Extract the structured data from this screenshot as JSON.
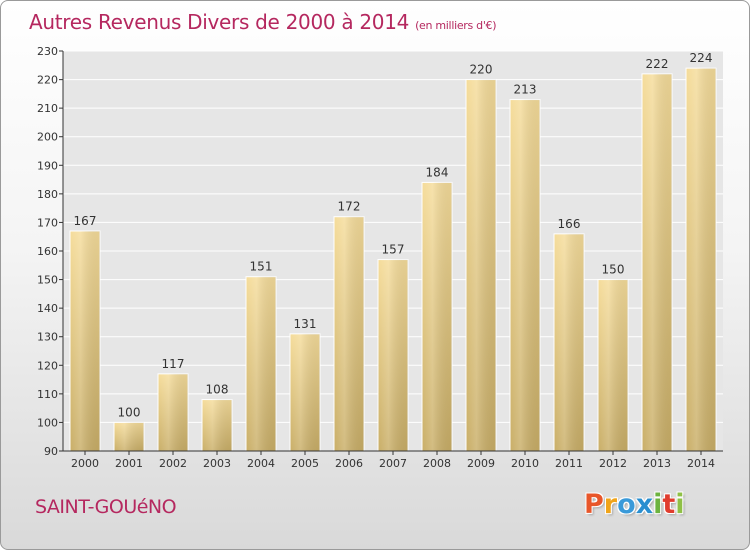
{
  "header": {
    "title": "Autres Revenus Divers de 2000 à 2014",
    "subtitle": "(en milliers d'€)"
  },
  "footer": {
    "commune": "SAINT-GOUéNO",
    "logo_letters": [
      "P",
      "r",
      "o",
      "x",
      "i",
      "t",
      "i"
    ],
    "logo_colors": [
      "#e8562a",
      "#f0a419",
      "#3a9ad9",
      "#2a8fd0",
      "#6db33f",
      "#e03d2e",
      "#8fc046"
    ]
  },
  "colors": {
    "bar_top": "#f5dc9a",
    "bar_bottom": "#c9ae67",
    "axis": "#333333",
    "grid": "#ffffff",
    "plot_bg": "#e6e6e6",
    "brand": "#b5285f"
  },
  "chart_data": {
    "type": "bar",
    "categories": [
      "2000",
      "2001",
      "2002",
      "2003",
      "2004",
      "2005",
      "2006",
      "2007",
      "2008",
      "2009",
      "2010",
      "2011",
      "2012",
      "2013",
      "2014"
    ],
    "values": [
      167,
      100,
      117,
      108,
      151,
      131,
      172,
      157,
      184,
      220,
      213,
      166,
      150,
      222,
      224
    ],
    "title": "Autres Revenus Divers de 2000 à 2014",
    "ylim": [
      90,
      230
    ],
    "yticks": [
      90,
      100,
      110,
      120,
      130,
      140,
      150,
      160,
      170,
      180,
      190,
      200,
      210,
      220,
      230
    ],
    "grid": true,
    "legend": "none"
  }
}
